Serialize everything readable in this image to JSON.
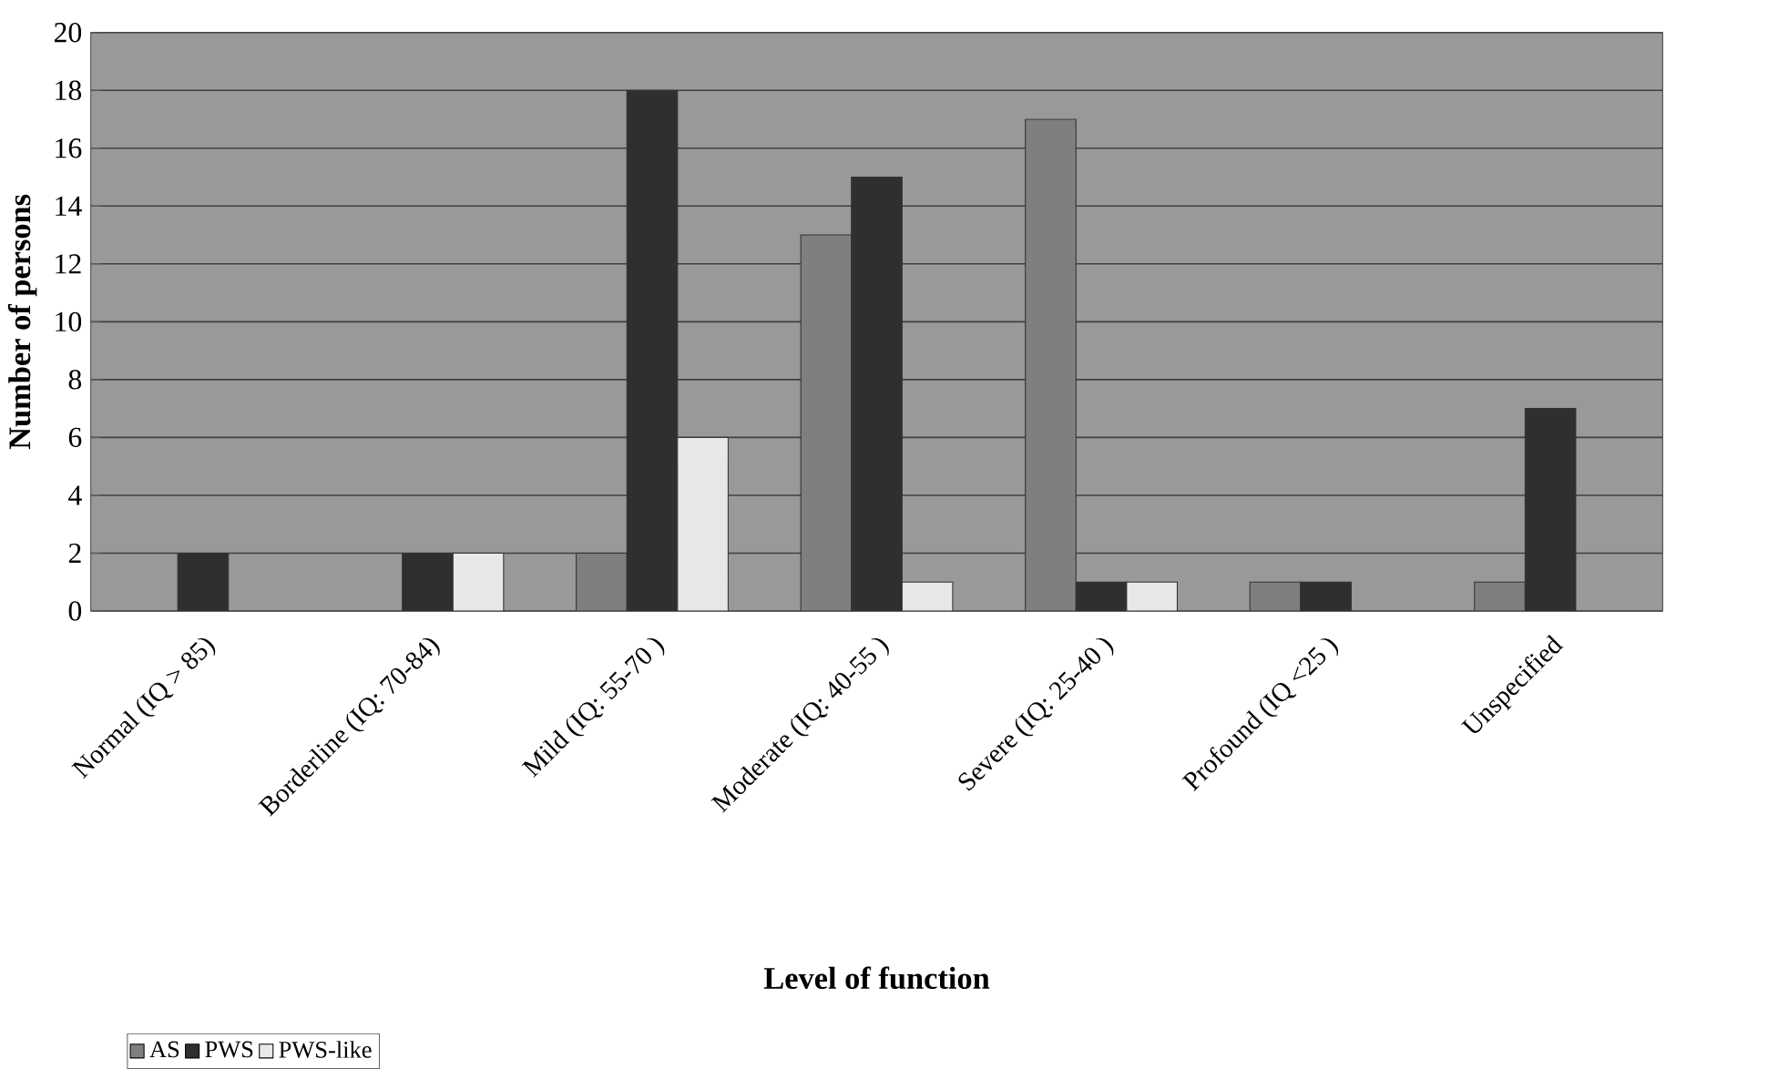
{
  "chart_data": {
    "type": "bar",
    "xlabel": "Level of function",
    "ylabel": "Number of persons",
    "categories": [
      "Normal (IQ > 85)",
      "Borderline (IQ: 70-84)",
      "Mild (IQ: 55-70 )",
      "Moderate (IQ: 40-55 )",
      "Severe (IQ: 25-40 )",
      "Profound (IQ <25 )",
      "Unspecified"
    ],
    "series": [
      {
        "name": "AS",
        "color": "#7f7f7f",
        "values": [
          0,
          0,
          2,
          13,
          17,
          1,
          1
        ]
      },
      {
        "name": "PWS",
        "color": "#2f2f2f",
        "values": [
          2,
          2,
          18,
          15,
          1,
          1,
          7
        ]
      },
      {
        "name": "PWS-like",
        "color": "#e8e8e8",
        "values": [
          0,
          2,
          6,
          1,
          1,
          0,
          0
        ]
      }
    ],
    "ylim": [
      0,
      20
    ],
    "yticks": [
      0,
      2,
      4,
      6,
      8,
      10,
      12,
      14,
      16,
      18,
      20
    ],
    "grid": "y",
    "legend": "bottom left"
  }
}
